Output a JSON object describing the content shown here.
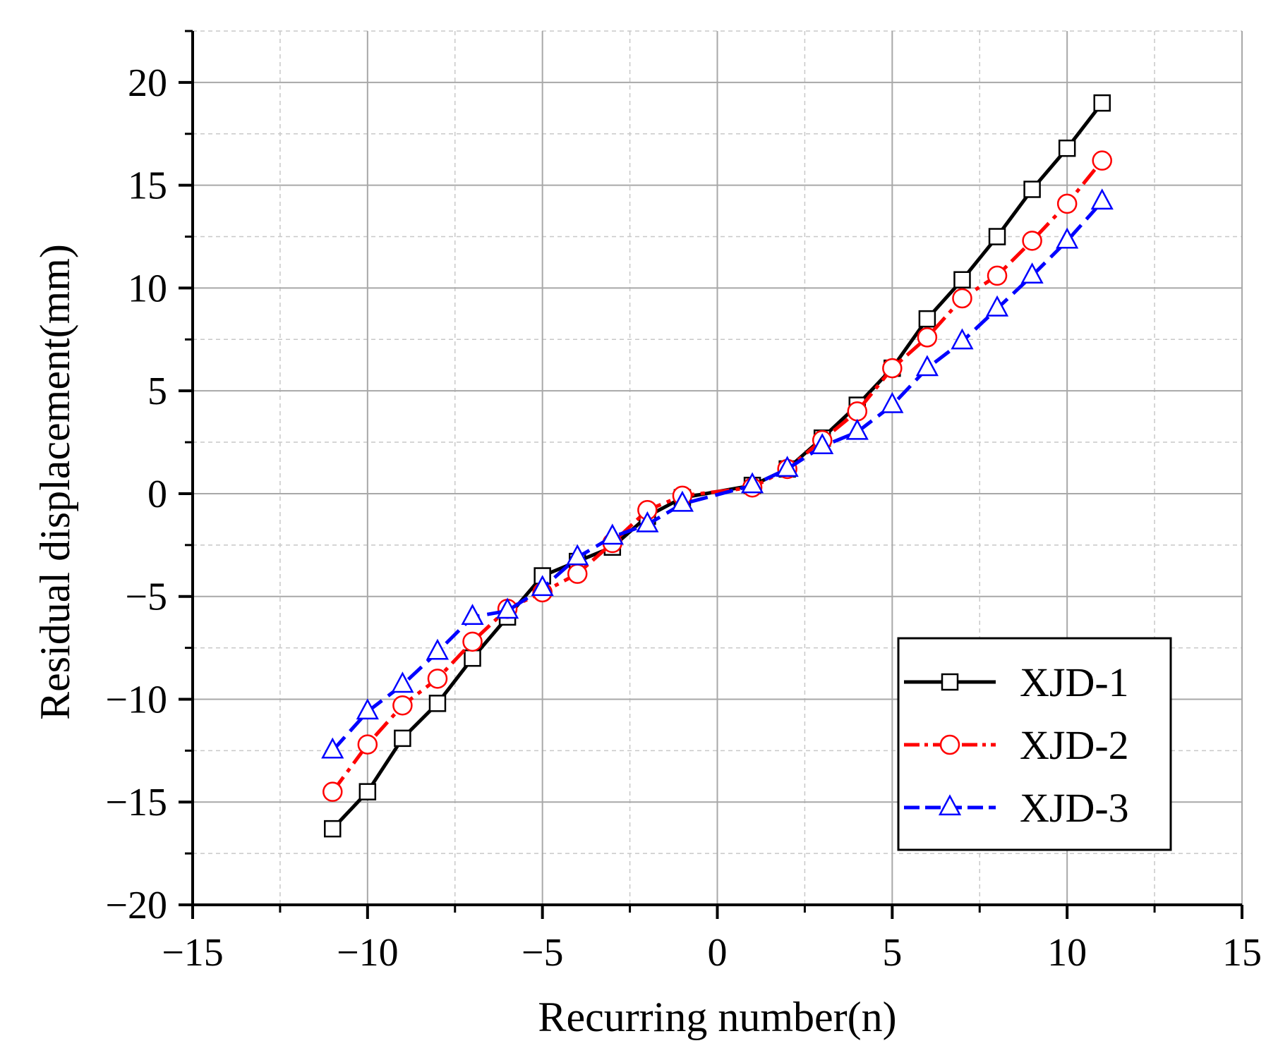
{
  "chart_data": {
    "type": "line",
    "title": "",
    "xlabel": "Recurring number(n)",
    "ylabel": "Residual displacement(mm)",
    "xlim": [
      -15,
      15
    ],
    "ylim": [
      -20,
      22.5
    ],
    "xticks": [
      -15,
      -10,
      -5,
      0,
      5,
      10,
      15
    ],
    "yticks": [
      -20,
      -15,
      -10,
      -5,
      0,
      5,
      10,
      15,
      20
    ],
    "grid": true,
    "legend_position": "bottom-right",
    "x": [
      -11,
      -10,
      -9,
      -8,
      -7,
      -6,
      -5,
      -4,
      -3,
      -2,
      -1,
      1,
      2,
      3,
      4,
      5,
      6,
      7,
      8,
      9,
      10,
      11
    ],
    "series": [
      {
        "name": "XJD-1",
        "color": "#000000",
        "marker": "square",
        "dash": "solid",
        "values": [
          -16.3,
          -14.5,
          -11.9,
          -10.2,
          -8.0,
          -6.0,
          -4.0,
          -3.3,
          -2.6,
          -1.1,
          -0.2,
          0.4,
          1.2,
          2.7,
          4.3,
          6.1,
          8.5,
          10.4,
          12.5,
          14.8,
          16.8,
          19.0
        ]
      },
      {
        "name": "XJD-2",
        "color": "#ff0000",
        "marker": "circle",
        "dash": "dashdot",
        "values": [
          -14.5,
          -12.2,
          -10.3,
          -9.0,
          -7.2,
          -5.6,
          -4.8,
          -3.9,
          -2.4,
          -0.8,
          -0.1,
          0.3,
          1.2,
          2.6,
          4.0,
          6.1,
          7.6,
          9.5,
          10.6,
          12.3,
          14.1,
          16.2
        ]
      },
      {
        "name": "XJD-3",
        "color": "#0000ff",
        "marker": "triangle",
        "dash": "dashed",
        "values": [
          -12.5,
          -10.6,
          -9.3,
          -7.7,
          -6.0,
          -5.7,
          -4.6,
          -3.1,
          -2.1,
          -1.5,
          -0.5,
          0.4,
          1.2,
          2.3,
          3.0,
          4.3,
          6.1,
          7.4,
          9.0,
          10.6,
          12.3,
          14.2
        ]
      }
    ]
  }
}
